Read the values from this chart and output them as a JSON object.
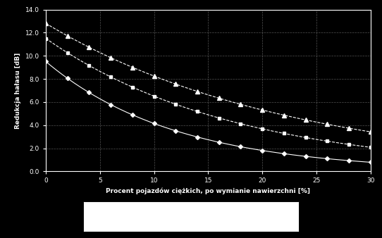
{
  "background_color": "#000000",
  "plot_bg_color": "#000000",
  "text_color": "#ffffff",
  "grid_color": "#888888",
  "xlabel": "Procent pojazdów ciężkich, po wymianie nawierzchni [%]",
  "ylabel": "Redukcja hałasu [dB]",
  "xlim": [
    0,
    30
  ],
  "ylim": [
    0.0,
    14.0
  ],
  "xticks": [
    0,
    5,
    10,
    15,
    20,
    25,
    30
  ],
  "yticks": [
    0.0,
    2.0,
    4.0,
    6.0,
    8.0,
    10.0,
    12.0,
    14.0
  ],
  "line1": {
    "color": "#ffffff",
    "linestyle": "-",
    "marker": "D",
    "markersize": 3,
    "start_y": 9.5,
    "decay": 0.083
  },
  "line2": {
    "color": "#ffffff",
    "linestyle": "--",
    "marker": "s",
    "markersize": 3,
    "start_y": 11.5,
    "decay": 0.057
  },
  "line3": {
    "color": "#ffffff",
    "linestyle": "--",
    "marker": "^",
    "markersize": 4,
    "start_y": 12.8,
    "decay": 0.044
  },
  "legend_box_color": "#ffffff",
  "markevery": 2
}
